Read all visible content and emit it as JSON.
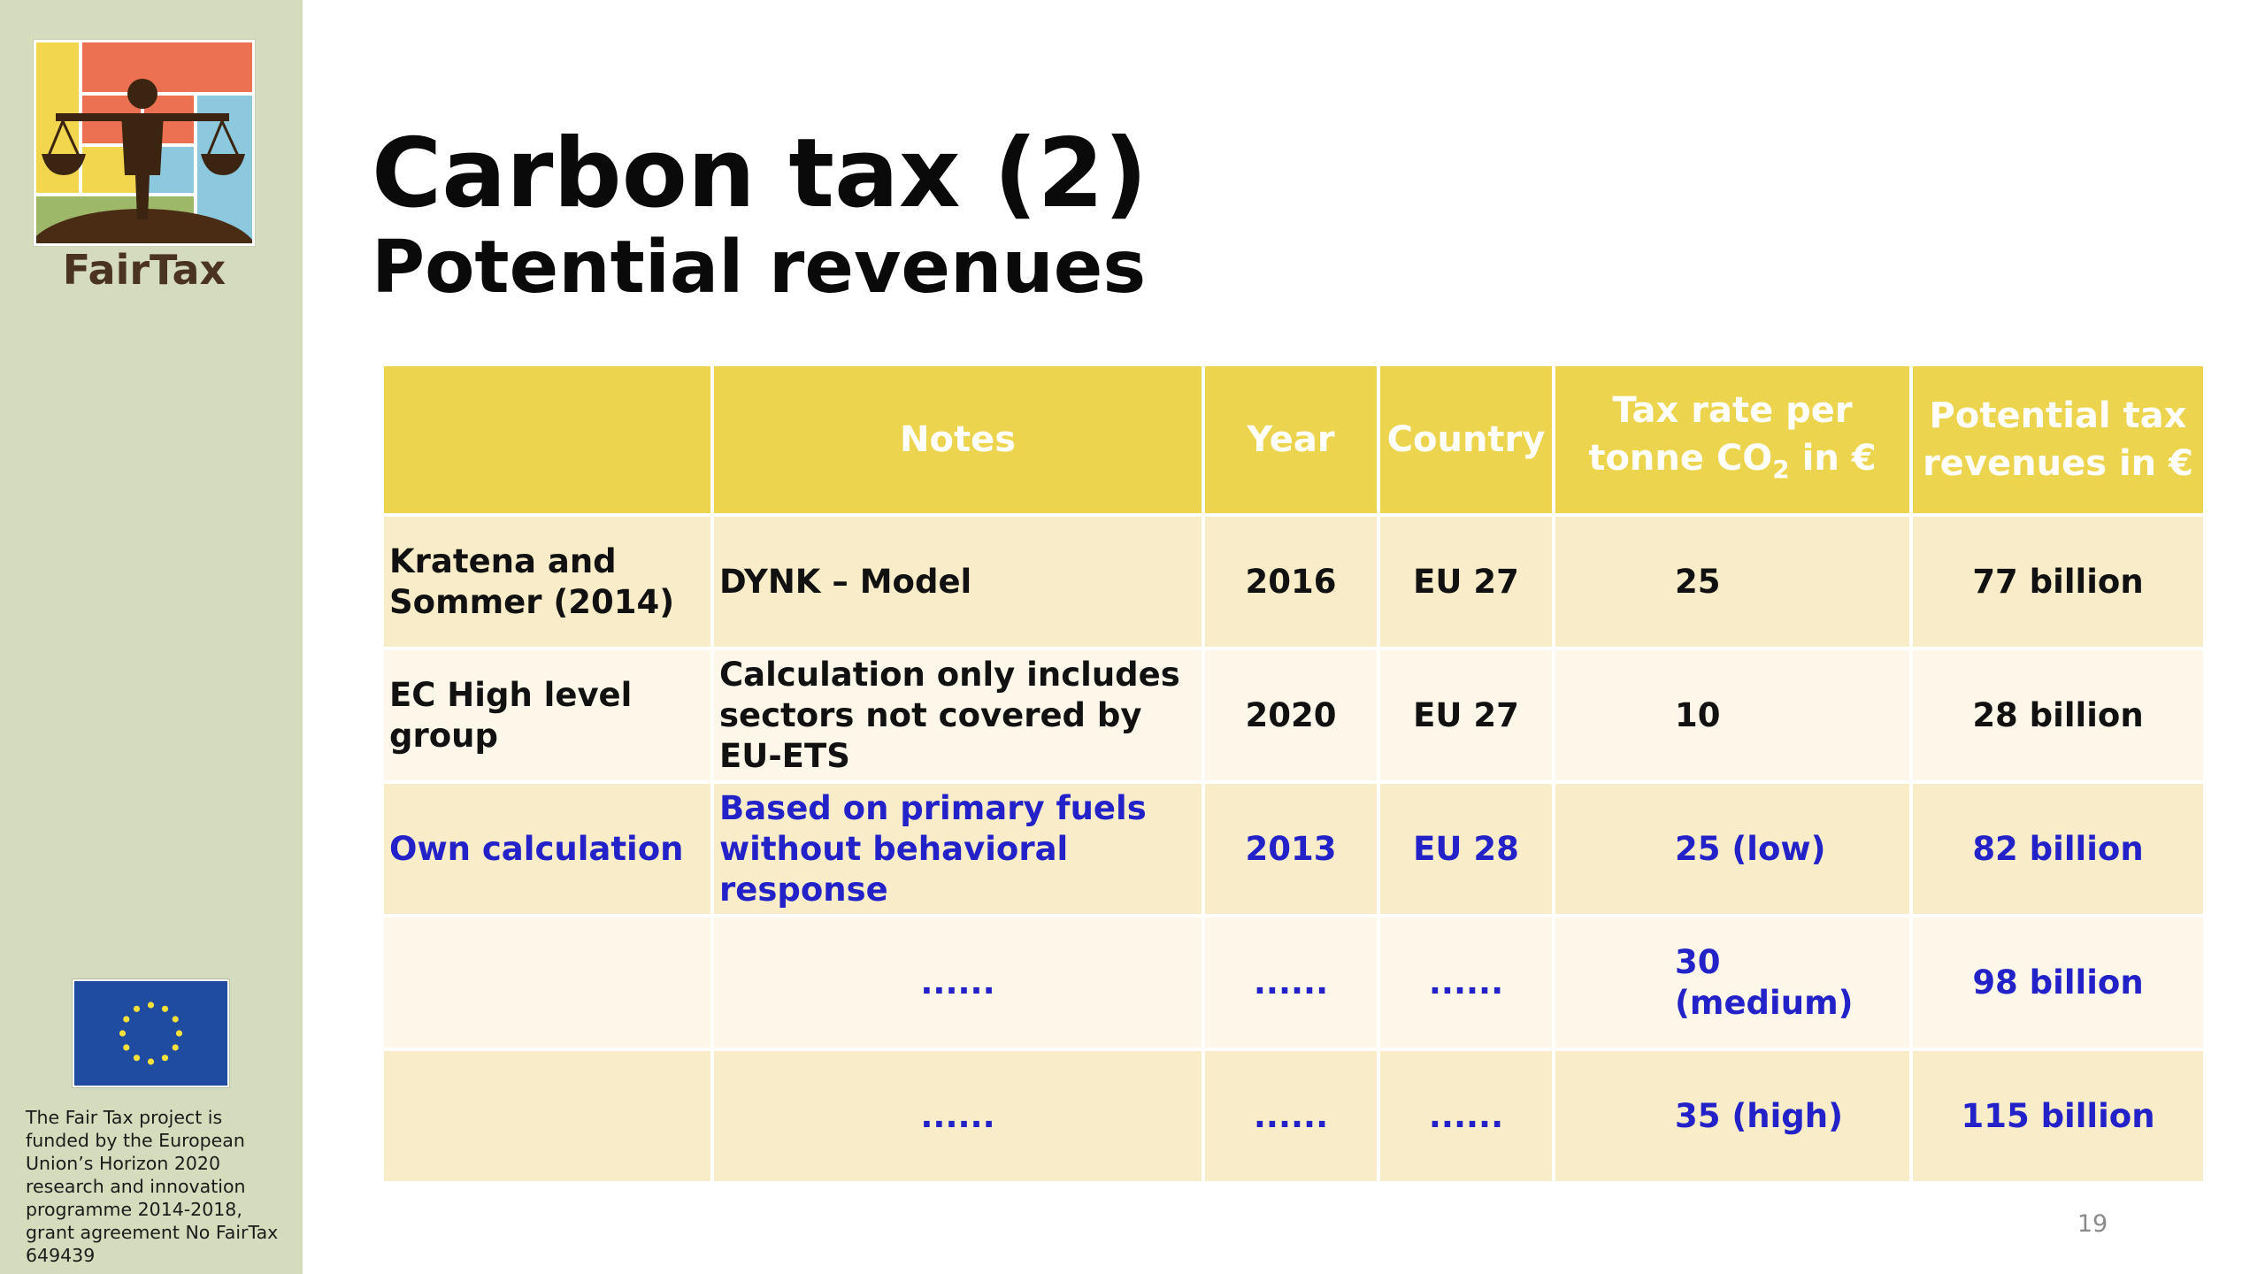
{
  "sidebar": {
    "logo_text": "FairTax",
    "funding_text": "The Fair Tax project is funded by the European Union’s Horizon 2020 research and innovation programme 2014-2018, grant agreement No FairTax 649439"
  },
  "slide": {
    "title": "Carbon tax (2)",
    "subtitle": "Potential revenues",
    "page_number": "19"
  },
  "table": {
    "headers": {
      "source": "",
      "notes": "Notes",
      "year": "Year",
      "country": "Country",
      "tax_rate_line1": "Tax rate per",
      "tax_rate_line2_pre": "tonne CO",
      "tax_rate_sub": "2",
      "tax_rate_line2_post": " in €",
      "revenue_line1": "Potential tax",
      "revenue_line2": "revenues in €"
    },
    "rows": [
      {
        "source": "Kratena and Sommer (2014)",
        "notes": "DYNK – Model",
        "year": "2016",
        "country": "EU 27",
        "rate": "25",
        "revenue": "77 billion"
      },
      {
        "source": "EC High level group",
        "notes": "Calculation only includes sectors not covered by EU-ETS",
        "year": "2020",
        "country": "EU 27",
        "rate": "10",
        "revenue": "28 billion"
      },
      {
        "source": "Own calculation",
        "notes": "Based on primary fuels without behavioral response",
        "year": "2013",
        "country": "EU 28",
        "rate": "25 (low)",
        "revenue": "82 billion"
      },
      {
        "source": "",
        "notes": "......",
        "year": "......",
        "country": "......",
        "rate": "30 (medium)",
        "revenue": "98 billion"
      },
      {
        "source": "",
        "notes": "......",
        "year": "......",
        "country": "......",
        "rate": "35 (high)",
        "revenue": "115 billion"
      }
    ]
  },
  "colors": {
    "sidebar_bg": "#d5dcbd",
    "header_bg": "#edd44e",
    "row_odd": "#f9ecc8",
    "row_even": "#fcf7e9",
    "highlight_text": "#2222c8"
  },
  "icons": [
    "fairtax-scales-logo-icon",
    "eu-flag-icon"
  ]
}
